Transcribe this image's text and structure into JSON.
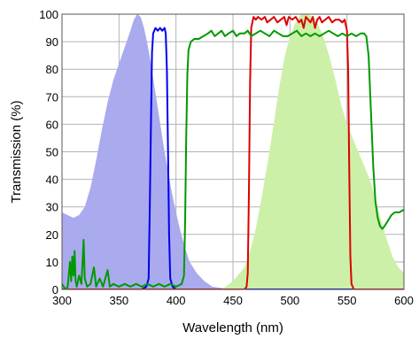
{
  "chart_data": {
    "type": "area",
    "title": "",
    "xlabel": "Wavelength (nm)",
    "ylabel": "Transmission (%)",
    "xlim": [
      300,
      600
    ],
    "ylim": [
      0,
      100
    ],
    "grid": true,
    "x_ticks": [
      300,
      350,
      400,
      450,
      500,
      550,
      600
    ],
    "y_ticks": [
      0,
      10,
      20,
      30,
      40,
      50,
      60,
      70,
      80,
      90,
      100
    ],
    "series": [
      {
        "kind": "filled-area",
        "color": "#aaaaee",
        "points": [
          [
            300,
            28
          ],
          [
            305,
            27
          ],
          [
            310,
            26
          ],
          [
            315,
            27
          ],
          [
            320,
            30
          ],
          [
            325,
            37
          ],
          [
            330,
            47
          ],
          [
            335,
            58
          ],
          [
            340,
            68
          ],
          [
            345,
            76
          ],
          [
            350,
            82
          ],
          [
            355,
            88
          ],
          [
            360,
            94
          ],
          [
            363,
            98
          ],
          [
            366,
            100
          ],
          [
            369,
            99
          ],
          [
            372,
            95
          ],
          [
            375,
            89
          ],
          [
            378,
            82
          ],
          [
            381,
            74
          ],
          [
            384,
            66
          ],
          [
            387,
            58
          ],
          [
            390,
            50
          ],
          [
            393,
            43
          ],
          [
            396,
            36
          ],
          [
            400,
            28
          ],
          [
            404,
            21
          ],
          [
            408,
            15
          ],
          [
            412,
            10
          ],
          [
            418,
            6
          ],
          [
            425,
            3
          ],
          [
            432,
            1
          ],
          [
            440,
            0.5
          ],
          [
            450,
            0
          ]
        ]
      },
      {
        "kind": "filled-area",
        "color": "#ccf0a8",
        "points": [
          [
            440,
            0
          ],
          [
            450,
            3
          ],
          [
            460,
            8
          ],
          [
            465,
            14
          ],
          [
            470,
            22
          ],
          [
            475,
            33
          ],
          [
            480,
            45
          ],
          [
            485,
            58
          ],
          [
            490,
            72
          ],
          [
            495,
            84
          ],
          [
            500,
            92
          ],
          [
            505,
            97
          ],
          [
            510,
            100
          ],
          [
            515,
            100
          ],
          [
            520,
            99
          ],
          [
            525,
            96
          ],
          [
            530,
            91
          ],
          [
            535,
            84
          ],
          [
            540,
            76
          ],
          [
            545,
            67
          ],
          [
            550,
            60
          ],
          [
            555,
            55
          ],
          [
            560,
            50
          ],
          [
            565,
            45
          ],
          [
            570,
            40
          ],
          [
            575,
            33
          ],
          [
            580,
            25
          ],
          [
            585,
            18
          ],
          [
            590,
            12
          ],
          [
            595,
            8
          ],
          [
            600,
            6
          ]
        ]
      },
      {
        "kind": "line",
        "color": "#0000ee",
        "points": [
          [
            300,
            0
          ],
          [
            370,
            0
          ],
          [
            374,
            1
          ],
          [
            376,
            4
          ],
          [
            377,
            30
          ],
          [
            378,
            60
          ],
          [
            379,
            86
          ],
          [
            380,
            93
          ],
          [
            382,
            95
          ],
          [
            384,
            94
          ],
          [
            386,
            95
          ],
          [
            388,
            94
          ],
          [
            390,
            95
          ],
          [
            391,
            93
          ],
          [
            392,
            80
          ],
          [
            393,
            50
          ],
          [
            394,
            20
          ],
          [
            395,
            4
          ],
          [
            397,
            1
          ],
          [
            400,
            0
          ],
          [
            600,
            0
          ]
        ]
      },
      {
        "kind": "line",
        "color": "#dd0000",
        "points": [
          [
            300,
            0
          ],
          [
            460,
            0
          ],
          [
            462,
            1
          ],
          [
            463,
            6
          ],
          [
            464,
            35
          ],
          [
            465,
            75
          ],
          [
            466,
            95
          ],
          [
            468,
            99
          ],
          [
            470,
            98
          ],
          [
            472,
            99
          ],
          [
            475,
            98
          ],
          [
            478,
            99
          ],
          [
            480,
            97
          ],
          [
            483,
            98
          ],
          [
            486,
            99
          ],
          [
            489,
            97
          ],
          [
            492,
            98
          ],
          [
            495,
            99
          ],
          [
            497,
            96
          ],
          [
            499,
            99
          ],
          [
            502,
            98
          ],
          [
            505,
            99
          ],
          [
            508,
            97
          ],
          [
            510,
            98
          ],
          [
            512,
            95
          ],
          [
            514,
            99
          ],
          [
            516,
            98
          ],
          [
            518,
            97
          ],
          [
            520,
            99
          ],
          [
            522,
            95
          ],
          [
            524,
            98
          ],
          [
            526,
            99
          ],
          [
            528,
            97
          ],
          [
            531,
            98
          ],
          [
            534,
            99
          ],
          [
            537,
            97
          ],
          [
            540,
            98
          ],
          [
            543,
            98
          ],
          [
            546,
            97
          ],
          [
            548,
            98
          ],
          [
            550,
            94
          ],
          [
            551,
            80
          ],
          [
            552,
            45
          ],
          [
            553,
            12
          ],
          [
            554,
            2
          ],
          [
            556,
            0
          ],
          [
            600,
            0
          ]
        ]
      },
      {
        "kind": "line",
        "color": "#009900",
        "points": [
          [
            300,
            2
          ],
          [
            303,
            0
          ],
          [
            305,
            1
          ],
          [
            307,
            10
          ],
          [
            308,
            3
          ],
          [
            309,
            12
          ],
          [
            310,
            5
          ],
          [
            311,
            14
          ],
          [
            312,
            3
          ],
          [
            313,
            1
          ],
          [
            315,
            5
          ],
          [
            317,
            2
          ],
          [
            318,
            10
          ],
          [
            319,
            18
          ],
          [
            320,
            4
          ],
          [
            322,
            1
          ],
          [
            325,
            2
          ],
          [
            328,
            8
          ],
          [
            330,
            1
          ],
          [
            333,
            4
          ],
          [
            336,
            1
          ],
          [
            340,
            7
          ],
          [
            342,
            1
          ],
          [
            345,
            2
          ],
          [
            350,
            1
          ],
          [
            355,
            2
          ],
          [
            360,
            1
          ],
          [
            365,
            2
          ],
          [
            370,
            1
          ],
          [
            375,
            2
          ],
          [
            380,
            1
          ],
          [
            385,
            2
          ],
          [
            390,
            1
          ],
          [
            395,
            2
          ],
          [
            400,
            1
          ],
          [
            405,
            2
          ],
          [
            407,
            5
          ],
          [
            408,
            25
          ],
          [
            409,
            55
          ],
          [
            410,
            78
          ],
          [
            411,
            87
          ],
          [
            413,
            90
          ],
          [
            416,
            91
          ],
          [
            420,
            91
          ],
          [
            424,
            92
          ],
          [
            428,
            93
          ],
          [
            431,
            94
          ],
          [
            434,
            92
          ],
          [
            437,
            93
          ],
          [
            440,
            94
          ],
          [
            443,
            92
          ],
          [
            446,
            93
          ],
          [
            450,
            94
          ],
          [
            453,
            92
          ],
          [
            456,
            93
          ],
          [
            460,
            93
          ],
          [
            463,
            94
          ],
          [
            466,
            92
          ],
          [
            470,
            93
          ],
          [
            474,
            94
          ],
          [
            478,
            93
          ],
          [
            482,
            92
          ],
          [
            486,
            94
          ],
          [
            490,
            93
          ],
          [
            494,
            92
          ],
          [
            498,
            92
          ],
          [
            502,
            93
          ],
          [
            506,
            94
          ],
          [
            510,
            92
          ],
          [
            514,
            93
          ],
          [
            518,
            92
          ],
          [
            522,
            93
          ],
          [
            526,
            92
          ],
          [
            530,
            93
          ],
          [
            534,
            94
          ],
          [
            538,
            93
          ],
          [
            542,
            92
          ],
          [
            546,
            93
          ],
          [
            550,
            92
          ],
          [
            554,
            93
          ],
          [
            558,
            92
          ],
          [
            562,
            93
          ],
          [
            565,
            93
          ],
          [
            567,
            92
          ],
          [
            569,
            85
          ],
          [
            571,
            65
          ],
          [
            573,
            45
          ],
          [
            575,
            32
          ],
          [
            577,
            26
          ],
          [
            579,
            23
          ],
          [
            581,
            22
          ],
          [
            583,
            23
          ],
          [
            586,
            25
          ],
          [
            589,
            27
          ],
          [
            592,
            28
          ],
          [
            596,
            28
          ],
          [
            600,
            29
          ]
        ]
      }
    ]
  }
}
